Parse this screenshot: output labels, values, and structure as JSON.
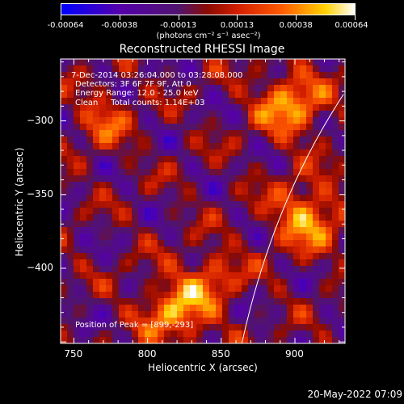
{
  "colorbar": {
    "ticks": [
      "-0.00064",
      "-0.00038",
      "-0.00013",
      "0.00013",
      "0.00038",
      "0.00064"
    ],
    "units": "(photons cm⁻² s⁻¹ asec⁻²)"
  },
  "annotations": {
    "line1": "7-Dec-2014 03:26:04.000 to 03:28:08.000",
    "line2": "Detectors: 3F 6F 7F 9F, Att 0",
    "line3": "Energy Range: 12.0 - 25.0 keV",
    "line4": "Clean     Total counts: 1.14E+03",
    "peak": "Position of Peak = [899,-293]"
  },
  "timestamp": "20-May-2022 07:09",
  "chart_data": {
    "type": "heatmap",
    "title": "Reconstructed RHESSI Image",
    "xlabel": "Heliocentric X (arcsec)",
    "ylabel": "Heliocentric Y (arcsec)",
    "xlim": [
      741,
      934
    ],
    "ylim": [
      -451,
      -258
    ],
    "xticks": [
      750,
      800,
      850,
      900
    ],
    "yticks": [
      -300,
      -350,
      -400
    ],
    "clim": [
      -0.00064,
      0.00064
    ],
    "colormap": "blue-purple-red-yellow-white",
    "peak": [
      899,
      -293
    ],
    "bright_regions": [
      {
        "x": 908,
        "y": -365,
        "level": "high"
      },
      {
        "x": 897,
        "y": -289,
        "level": "high"
      },
      {
        "x": 820,
        "y": -429,
        "level": "high"
      },
      {
        "x": 845,
        "y": -405,
        "level": "medium"
      },
      {
        "x": 770,
        "y": -300,
        "level": "medium"
      }
    ],
    "limb": [
      [
        933,
        -282
      ],
      [
        885,
        -355
      ],
      [
        864,
        -451
      ]
    ]
  }
}
